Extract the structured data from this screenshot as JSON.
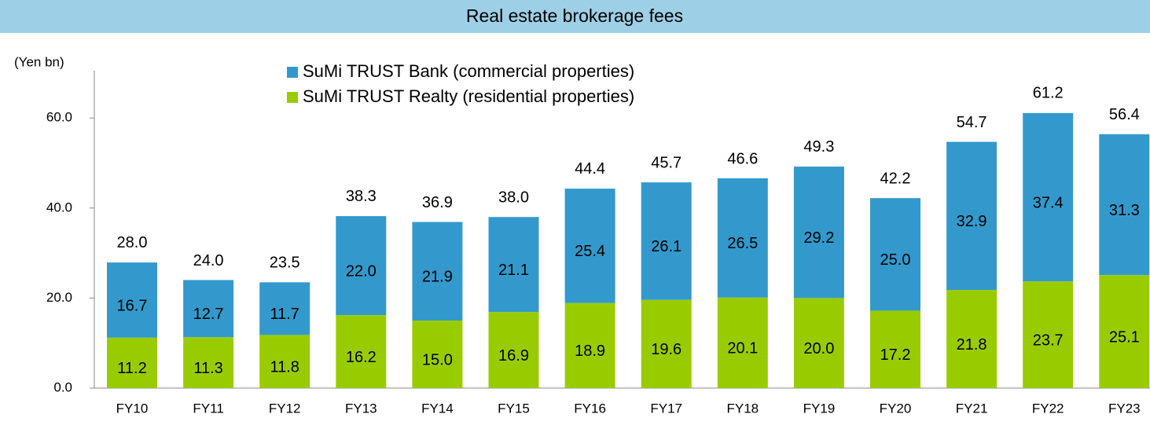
{
  "chart_data": {
    "type": "stacked_bar",
    "title": "Real estate brokerage fees",
    "y_axis_label": "(Yen bn)",
    "categories": [
      "FY10",
      "FY11",
      "FY12",
      "FY13",
      "FY14",
      "FY15",
      "FY16",
      "FY17",
      "FY18",
      "FY19",
      "FY20",
      "FY21",
      "FY22",
      "FY23"
    ],
    "series": [
      {
        "name": "SuMi TRUST Realty (residential properties)",
        "color": "#99cc00",
        "values": [
          11.2,
          11.3,
          11.8,
          16.2,
          15.0,
          16.9,
          18.9,
          19.6,
          20.1,
          20.0,
          17.2,
          21.8,
          23.7,
          25.1
        ],
        "value_labels": [
          "11.2",
          "11.3",
          "11.8",
          "16.2",
          "15.0",
          "16.9",
          "18.9",
          "19.6",
          "20.1",
          "20.0",
          "17.2",
          "21.8",
          "23.7",
          "25.1"
        ]
      },
      {
        "name": "SuMi TRUST Bank (commercial properties)",
        "color": "#3399cc",
        "values": [
          16.7,
          12.7,
          11.7,
          22.0,
          21.9,
          21.1,
          25.4,
          26.1,
          26.5,
          29.2,
          25.0,
          32.9,
          37.4,
          31.3
        ],
        "value_labels": [
          "16.7",
          "12.7",
          "11.7",
          "22.0",
          "21.9",
          "21.1",
          "25.4",
          "26.1",
          "26.5",
          "29.2",
          "25.0",
          "32.9",
          "37.4",
          "31.3"
        ]
      }
    ],
    "totals": [
      28.0,
      24.0,
      23.5,
      38.3,
      36.9,
      38.0,
      44.4,
      45.7,
      46.6,
      49.3,
      42.2,
      54.7,
      61.2,
      56.4
    ],
    "total_labels": [
      "28.0",
      "24.0",
      "23.5",
      "38.3",
      "36.9",
      "38.0",
      "44.4",
      "45.7",
      "46.6",
      "49.3",
      "42.2",
      "54.7",
      "61.2",
      "56.4"
    ],
    "ylim": [
      0,
      63
    ],
    "yticks": [
      {
        "value": 0,
        "label": "0.0"
      },
      {
        "value": 20,
        "label": "20.0"
      },
      {
        "value": 40,
        "label": "40.0"
      },
      {
        "value": 60,
        "label": "60.0"
      }
    ],
    "grid": false
  }
}
